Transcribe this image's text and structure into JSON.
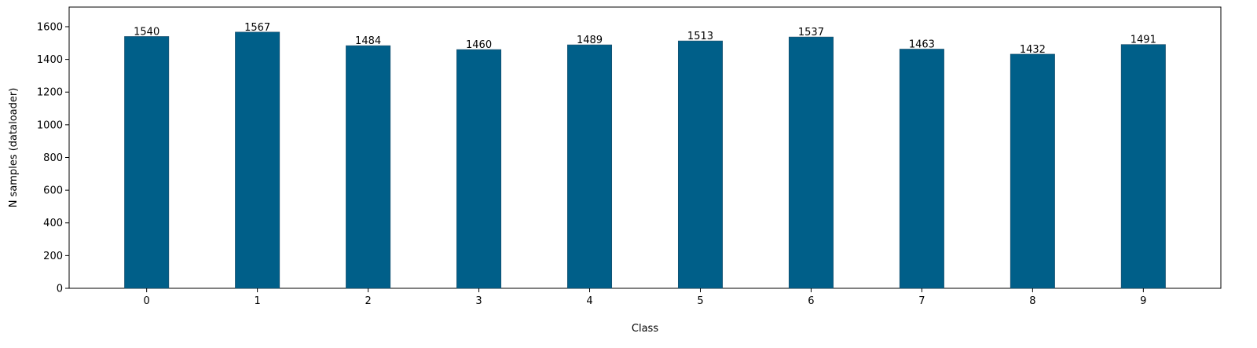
{
  "chart_data": {
    "type": "bar",
    "categories": [
      "0",
      "1",
      "2",
      "3",
      "4",
      "5",
      "6",
      "7",
      "8",
      "9"
    ],
    "values": [
      1540,
      1567,
      1484,
      1460,
      1489,
      1513,
      1537,
      1463,
      1432,
      1491
    ],
    "data_labels": [
      "1540",
      "1567",
      "1484",
      "1460",
      "1489",
      "1513",
      "1537",
      "1463",
      "1432",
      "1491"
    ],
    "xlabel": "Class",
    "ylabel": "N samples (dataloader)",
    "ylim": [
      0,
      1720
    ],
    "yticks": [
      0,
      200,
      400,
      600,
      800,
      1000,
      1200,
      1400,
      1600
    ],
    "ytick_labels": [
      "0",
      "200",
      "400",
      "600",
      "800",
      "1000",
      "1200",
      "1400",
      "1600"
    ],
    "grid": false,
    "bar_color": "#005f89"
  }
}
